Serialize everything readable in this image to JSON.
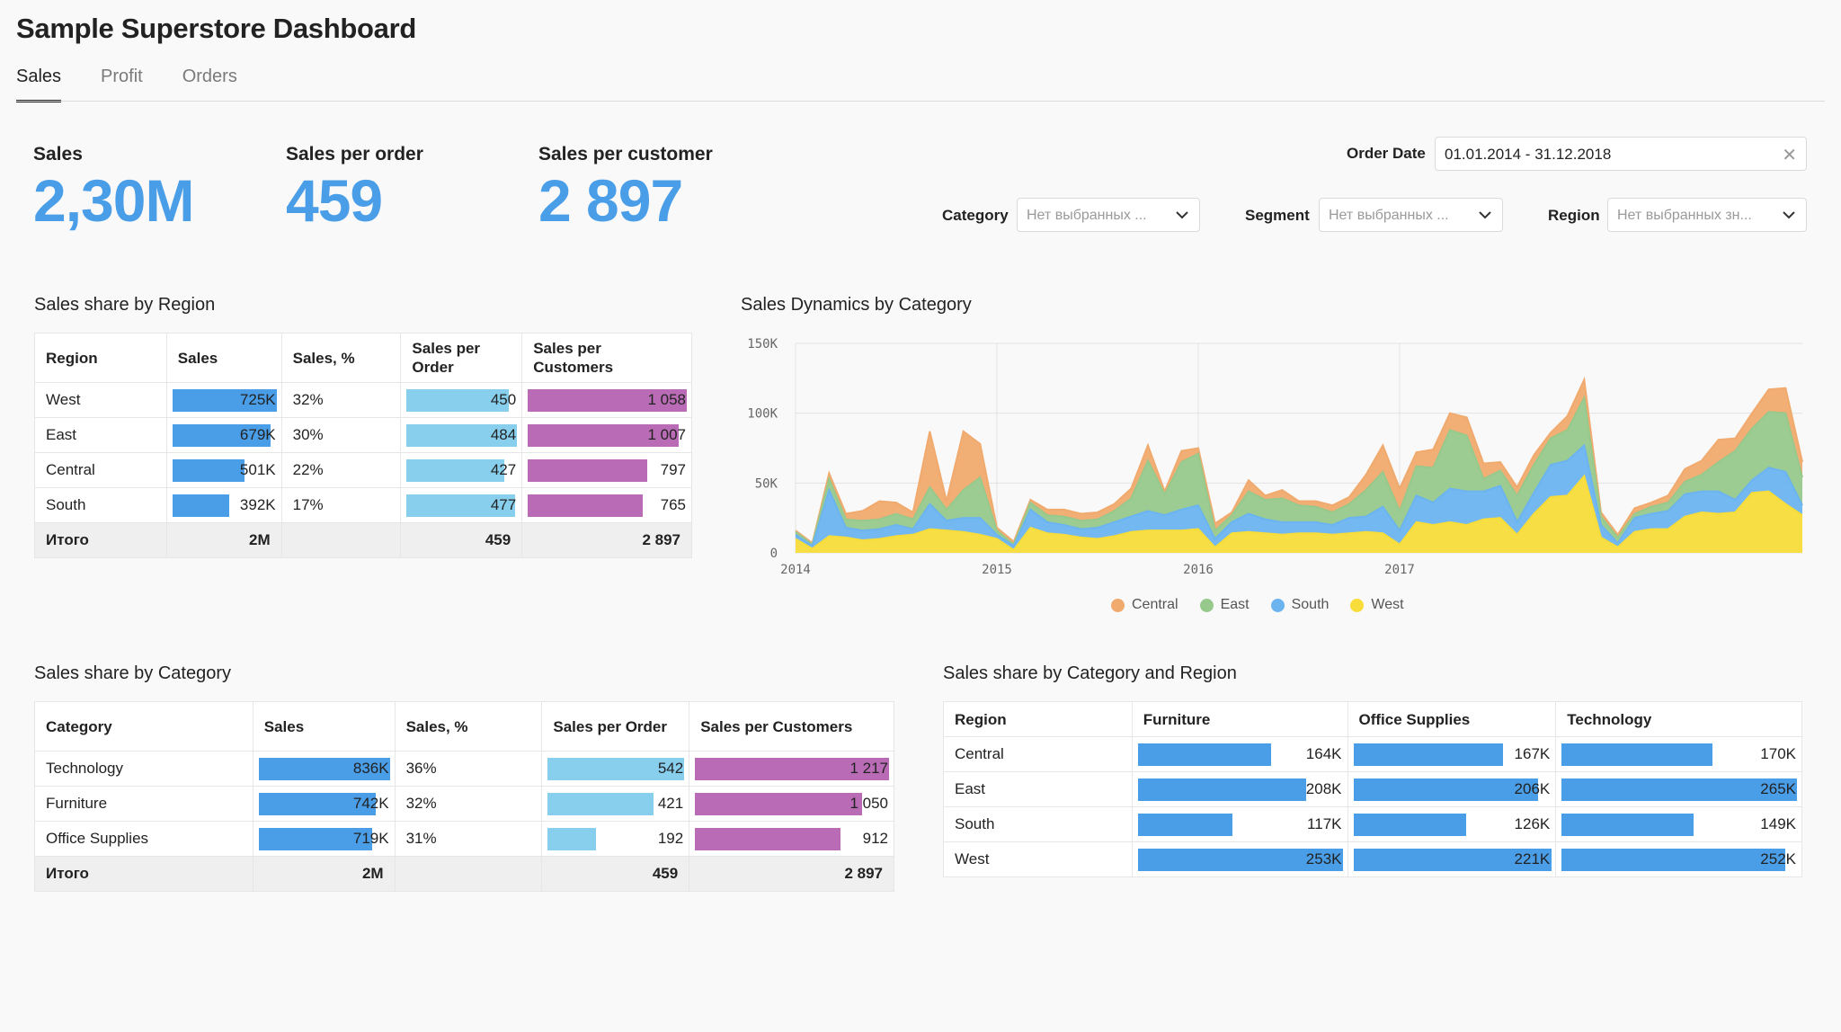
{
  "page_title": "Sample Superstore Dashboard",
  "tabs": [
    {
      "label": "Sales",
      "active": true
    },
    {
      "label": "Profit",
      "active": false
    },
    {
      "label": "Orders",
      "active": false
    }
  ],
  "kpis": [
    {
      "label": "Sales",
      "value": "2,30M"
    },
    {
      "label": "Sales per order",
      "value": "459"
    },
    {
      "label": "Sales per customer",
      "value": "2 897"
    }
  ],
  "filters": {
    "order_date": {
      "label": "Order Date",
      "value": "01.01.2014 - 31.12.2018"
    },
    "category": {
      "label": "Category",
      "placeholder": "Нет выбранных ..."
    },
    "segment": {
      "label": "Segment",
      "placeholder": "Нет выбранных ..."
    },
    "region": {
      "label": "Region",
      "placeholder": "Нет выбранных зн..."
    }
  },
  "colors": {
    "accent": "#4a9ee8",
    "bar_cyan": "#88cfee",
    "bar_magenta": "#b96cb5",
    "central": "#f0aa6e",
    "east": "#97c98c",
    "south": "#6bb4f0",
    "west": "#f7dc3a"
  },
  "region_table": {
    "title": "Sales share by Region",
    "headers": [
      "Region",
      "Sales",
      "Sales, %",
      "Sales per Order",
      "Sales per Customers"
    ],
    "rows": [
      {
        "name": "West",
        "sales": "725K",
        "sales_v": 725,
        "pct": "32%",
        "spo": "450",
        "spo_v": 450,
        "spc": "1 058",
        "spc_v": 1058
      },
      {
        "name": "East",
        "sales": "679K",
        "sales_v": 679,
        "pct": "30%",
        "spo": "484",
        "spo_v": 484,
        "spc": "1 007",
        "spc_v": 1007
      },
      {
        "name": "Central",
        "sales": "501K",
        "sales_v": 501,
        "pct": "22%",
        "spo": "427",
        "spo_v": 427,
        "spc": "797",
        "spc_v": 797
      },
      {
        "name": "South",
        "sales": "392K",
        "sales_v": 392,
        "pct": "17%",
        "spo": "477",
        "spo_v": 477,
        "spc": "765",
        "spc_v": 765
      }
    ],
    "total": {
      "name": "Итого",
      "sales": "2M",
      "pct": "",
      "spo": "459",
      "spc": "2 897"
    }
  },
  "category_table": {
    "title": "Sales share by Category",
    "headers": [
      "Category",
      "Sales",
      "Sales, %",
      "Sales per Order",
      "Sales per Customers"
    ],
    "rows": [
      {
        "name": "Technology",
        "sales": "836K",
        "sales_v": 836,
        "pct": "36%",
        "spo": "542",
        "spo_v": 542,
        "spc": "1 217",
        "spc_v": 1217
      },
      {
        "name": "Furniture",
        "sales": "742K",
        "sales_v": 742,
        "pct": "32%",
        "spo": "421",
        "spo_v": 421,
        "spc": "1 050",
        "spc_v": 1050
      },
      {
        "name": "Office Supplies",
        "sales": "719K",
        "sales_v": 719,
        "pct": "31%",
        "spo": "192",
        "spo_v": 192,
        "spc": "912",
        "spc_v": 912
      }
    ],
    "total": {
      "name": "Итого",
      "sales": "2M",
      "pct": "",
      "spo": "459",
      "spc": "2 897"
    }
  },
  "cat_region_table": {
    "title": "Sales share by Category and Region",
    "headers": [
      "Region",
      "Furniture",
      "Office Supplies",
      "Technology"
    ],
    "rows": [
      {
        "name": "Central",
        "vals": [
          "164K",
          "167K",
          "170K"
        ],
        "nums": [
          164,
          167,
          170
        ]
      },
      {
        "name": "East",
        "vals": [
          "208K",
          "206K",
          "265K"
        ],
        "nums": [
          208,
          206,
          265
        ]
      },
      {
        "name": "South",
        "vals": [
          "117K",
          "126K",
          "149K"
        ],
        "nums": [
          117,
          126,
          149
        ]
      },
      {
        "name": "West",
        "vals": [
          "253K",
          "221K",
          "252K"
        ],
        "nums": [
          253,
          221,
          252
        ]
      }
    ]
  },
  "chart_title": "Sales Dynamics by Category",
  "chart_data": {
    "type": "area",
    "stacked": true,
    "x_ticks": [
      "2014",
      "2015",
      "2016",
      "2017"
    ],
    "y_ticks": [
      "0",
      "50K",
      "100K",
      "150K"
    ],
    "ylim": [
      0,
      150000
    ],
    "grid": true,
    "legend_position": "bottom",
    "series": [
      {
        "name": "West",
        "color": "#f7dc3a",
        "values": [
          10,
          3,
          12,
          11,
          9,
          10,
          12,
          13,
          17,
          16,
          15,
          13,
          10,
          2,
          18,
          14,
          13,
          11,
          10,
          12,
          15,
          16,
          16,
          16,
          17,
          4,
          14,
          15,
          14,
          13,
          14,
          14,
          13,
          14,
          15,
          14,
          6,
          22,
          20,
          22,
          20,
          24,
          25,
          13,
          28,
          40,
          41,
          55,
          11,
          4,
          15,
          17,
          17,
          26,
          29,
          28,
          29,
          43,
          44,
          35,
          27
        ]
      },
      {
        "name": "South",
        "color": "#6bb4f0",
        "values": [
          3,
          2,
          33,
          7,
          7,
          7,
          8,
          4,
          18,
          7,
          10,
          12,
          3,
          3,
          13,
          8,
          7,
          6,
          8,
          10,
          11,
          14,
          11,
          15,
          17,
          6,
          8,
          13,
          10,
          9,
          8,
          8,
          7,
          11,
          11,
          19,
          10,
          19,
          16,
          24,
          24,
          20,
          23,
          9,
          15,
          23,
          25,
          22,
          9,
          3,
          10,
          11,
          13,
          16,
          15,
          16,
          9,
          9,
          17,
          23,
          7
        ]
      },
      {
        "name": "East",
        "color": "#97c98c",
        "values": [
          2,
          1,
          8,
          6,
          7,
          7,
          8,
          7,
          12,
          8,
          20,
          29,
          3,
          1,
          5,
          5,
          6,
          6,
          6,
          8,
          13,
          36,
          15,
          34,
          37,
          6,
          5,
          16,
          14,
          17,
          12,
          11,
          9,
          10,
          19,
          25,
          14,
          21,
          25,
          42,
          40,
          9,
          11,
          19,
          20,
          19,
          22,
          34,
          6,
          4,
          3,
          5,
          6,
          9,
          12,
          21,
          35,
          37,
          40,
          42,
          20
        ]
      },
      {
        "name": "Central",
        "color": "#f0aa6e",
        "values": [
          1,
          1,
          4,
          4,
          7,
          13,
          8,
          5,
          40,
          6,
          42,
          24,
          2,
          2,
          2,
          4,
          5,
          5,
          5,
          5,
          7,
          11,
          2,
          8,
          4,
          5,
          2,
          8,
          3,
          6,
          3,
          4,
          5,
          5,
          11,
          19,
          16,
          10,
          13,
          12,
          13,
          11,
          6,
          6,
          7,
          4,
          10,
          13,
          3,
          2,
          4,
          3,
          5,
          9,
          10,
          16,
          9,
          11,
          16,
          18,
          11
        ]
      }
    ]
  }
}
